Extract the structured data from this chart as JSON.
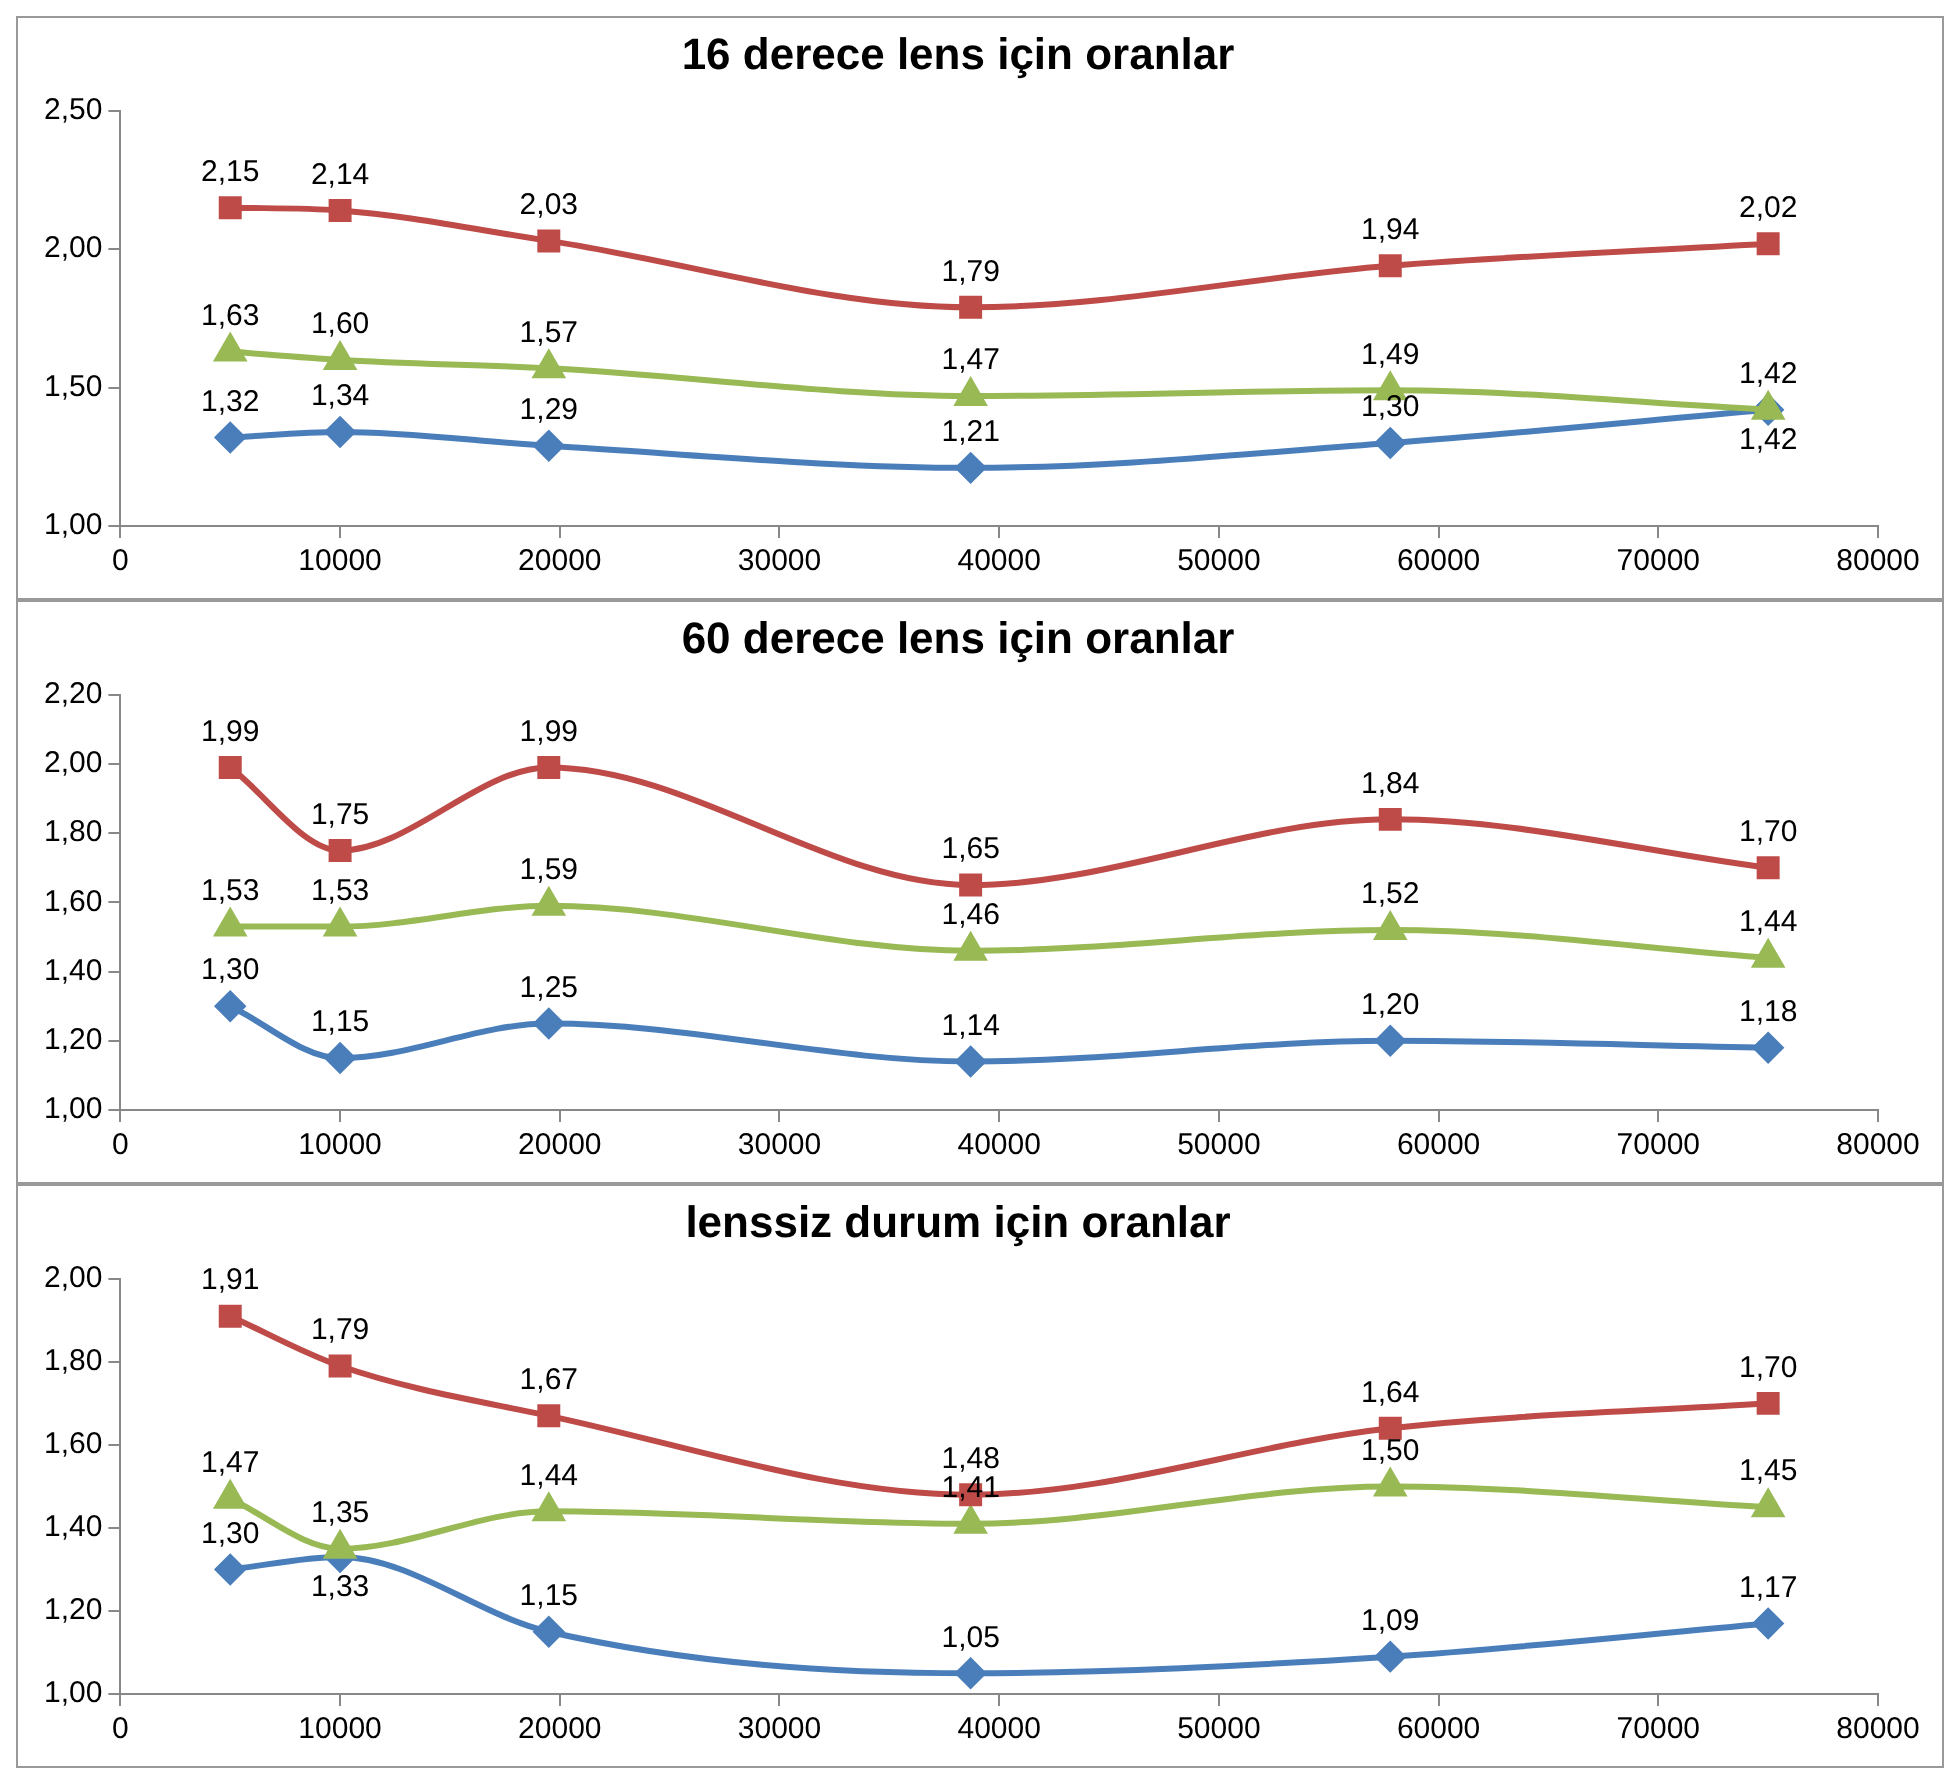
{
  "chart_data": [
    {
      "type": "line",
      "title": "16 derece lens için oranlar",
      "x": [
        5000,
        10000,
        19500,
        38700,
        57800,
        75000
      ],
      "xlim": [
        0,
        80000
      ],
      "xticks": [
        0,
        10000,
        20000,
        30000,
        40000,
        50000,
        60000,
        70000,
        80000
      ],
      "ylim": [
        1,
        2.5
      ],
      "yticks": [
        {
          "value": 1,
          "label": "1,00"
        },
        {
          "value": 1.5,
          "label": "1,50"
        },
        {
          "value": 2,
          "label": "2,00"
        },
        {
          "value": 2.5,
          "label": "2,50"
        }
      ],
      "grid": false,
      "legend": false,
      "series": [
        {
          "color": "#be4b48",
          "marker": "square",
          "values": [
            2.15,
            2.14,
            2.03,
            1.79,
            1.94,
            2.02
          ],
          "value_labels": [
            "2,15",
            "2,14",
            "2,03",
            "1,79",
            "1,94",
            "2,02"
          ]
        },
        {
          "color": "#98b954",
          "marker": "triangle",
          "values": [
            1.63,
            1.6,
            1.57,
            1.47,
            1.49,
            1.42
          ],
          "value_labels": [
            "1,63",
            "1,60",
            "1,57",
            "1,47",
            "1,49",
            "1,42"
          ]
        },
        {
          "color": "#4a7ebb",
          "marker": "diamond",
          "values": [
            1.32,
            1.34,
            1.29,
            1.21,
            1.3,
            1.42
          ],
          "value_labels": [
            "1,32",
            "1,34",
            "1,29",
            "1,21",
            "1,30",
            "1,42"
          ]
        }
      ]
    },
    {
      "type": "line",
      "title": "60 derece lens için oranlar",
      "x": [
        5000,
        10000,
        19500,
        38700,
        57800,
        75000
      ],
      "xlim": [
        0,
        80000
      ],
      "xticks": [
        0,
        10000,
        20000,
        30000,
        40000,
        50000,
        60000,
        70000,
        80000
      ],
      "ylim": [
        1,
        2.2
      ],
      "yticks": [
        {
          "value": 1,
          "label": "1,00"
        },
        {
          "value": 1.2,
          "label": "1,20"
        },
        {
          "value": 1.4,
          "label": "1,40"
        },
        {
          "value": 1.6,
          "label": "1,60"
        },
        {
          "value": 1.8,
          "label": "1,80"
        },
        {
          "value": 2,
          "label": "2,00"
        },
        {
          "value": 2.2,
          "label": "2,20"
        }
      ],
      "grid": false,
      "legend": false,
      "series": [
        {
          "color": "#be4b48",
          "marker": "square",
          "values": [
            1.99,
            1.75,
            1.99,
            1.65,
            1.84,
            1.7
          ],
          "value_labels": [
            "1,99",
            "1,75",
            "1,99",
            "1,65",
            "1,84",
            "1,70"
          ]
        },
        {
          "color": "#98b954",
          "marker": "triangle",
          "values": [
            1.53,
            1.53,
            1.59,
            1.46,
            1.52,
            1.44
          ],
          "value_labels": [
            "1,53",
            "1,53",
            "1,59",
            "1,46",
            "1,52",
            "1,44"
          ]
        },
        {
          "color": "#4a7ebb",
          "marker": "diamond",
          "values": [
            1.3,
            1.15,
            1.25,
            1.14,
            1.2,
            1.18
          ],
          "value_labels": [
            "1,30",
            "1,15",
            "1,25",
            "1,14",
            "1,20",
            "1,18"
          ]
        }
      ]
    },
    {
      "type": "line",
      "title": "lenssiz durum için oranlar",
      "x": [
        5000,
        10000,
        19500,
        38700,
        57800,
        75000
      ],
      "xlim": [
        0,
        80000
      ],
      "xticks": [
        0,
        10000,
        20000,
        30000,
        40000,
        50000,
        60000,
        70000,
        80000
      ],
      "ylim": [
        1,
        2
      ],
      "yticks": [
        {
          "value": 1,
          "label": "1,00"
        },
        {
          "value": 1.2,
          "label": "1,20"
        },
        {
          "value": 1.4,
          "label": "1,40"
        },
        {
          "value": 1.6,
          "label": "1,60"
        },
        {
          "value": 1.8,
          "label": "1,80"
        },
        {
          "value": 2,
          "label": "2,00"
        }
      ],
      "grid": false,
      "legend": false,
      "series": [
        {
          "color": "#be4b48",
          "marker": "square",
          "values": [
            1.91,
            1.79,
            1.67,
            1.48,
            1.64,
            1.7
          ],
          "value_labels": [
            "1,91",
            "1,79",
            "1,67",
            "1,48",
            "1,64",
            "1,70"
          ]
        },
        {
          "color": "#98b954",
          "marker": "triangle",
          "values": [
            1.47,
            1.35,
            1.44,
            1.41,
            1.5,
            1.45
          ],
          "value_labels": [
            "1,47",
            "1,35",
            "1,44",
            "1,41",
            "1,50",
            "1,45"
          ]
        },
        {
          "color": "#4a7ebb",
          "marker": "diamond",
          "values": [
            1.3,
            1.33,
            1.15,
            1.05,
            1.09,
            1.17
          ],
          "value_labels": [
            "1,30",
            "1,33",
            "1,15",
            "1,05",
            "1,09",
            "1,17"
          ]
        }
      ]
    }
  ]
}
